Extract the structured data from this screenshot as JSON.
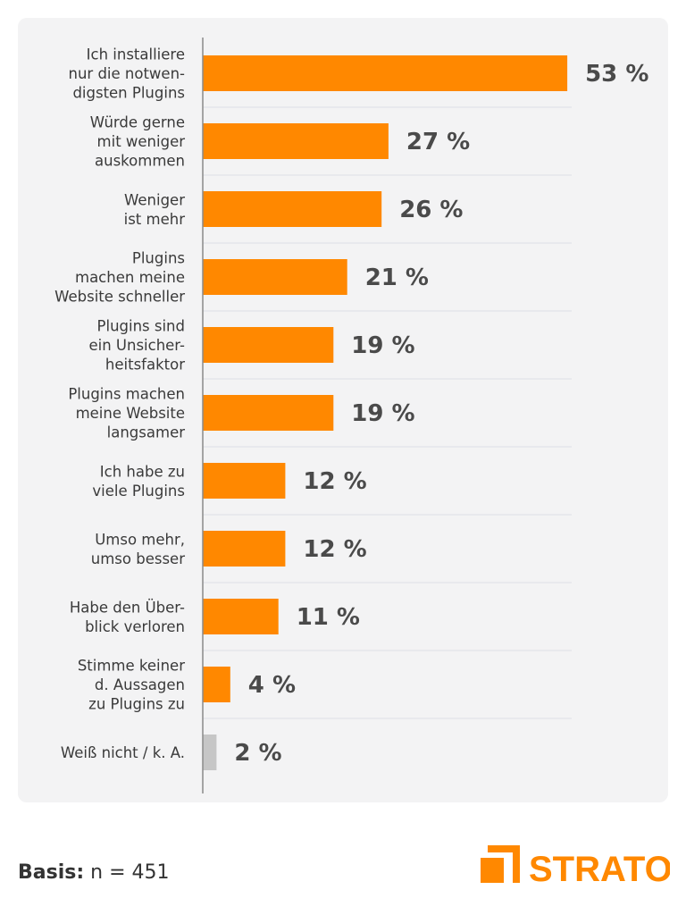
{
  "chart_data": {
    "type": "bar",
    "orientation": "horizontal",
    "categories": [
      [
        "Ich installiere",
        "nur die notwen-",
        "digsten Plugins"
      ],
      [
        "Würde gerne",
        "mit weniger",
        "auskommen"
      ],
      [
        "Weniger",
        "ist mehr"
      ],
      [
        "Plugins",
        "machen meine",
        "Website schneller"
      ],
      [
        "Plugins sind",
        "ein Unsicher-",
        "heitsfaktor"
      ],
      [
        "Plugins machen",
        "meine Website",
        "langsamer"
      ],
      [
        "Ich habe zu",
        "viele Plugins"
      ],
      [
        "Umso mehr,",
        "umso besser"
      ],
      [
        "Habe den Über-",
        "blick verloren"
      ],
      [
        "Stimme keiner",
        "d. Aussagen",
        "zu Plugins zu"
      ],
      [
        "Weiß nicht / k. A."
      ]
    ],
    "values": [
      53,
      27,
      26,
      21,
      19,
      19,
      12,
      12,
      11,
      4,
      2
    ],
    "value_labels": [
      "53 %",
      "27 %",
      "26 %",
      "21 %",
      "19 %",
      "19 %",
      "12 %",
      "12 %",
      "11 %",
      "4 %",
      "2 %"
    ],
    "bar_colors": [
      "#ff8800",
      "#ff8800",
      "#ff8800",
      "#ff8800",
      "#ff8800",
      "#ff8800",
      "#ff8800",
      "#ff8800",
      "#ff8800",
      "#ff8800",
      "#c6c6c6"
    ],
    "xlim": [
      0,
      100
    ],
    "grid": false,
    "legend": "none"
  },
  "footer": {
    "basis_label": "Basis:",
    "basis_value": " n = 451"
  },
  "brand": {
    "name": "STRATO",
    "color": "#ff8800"
  }
}
